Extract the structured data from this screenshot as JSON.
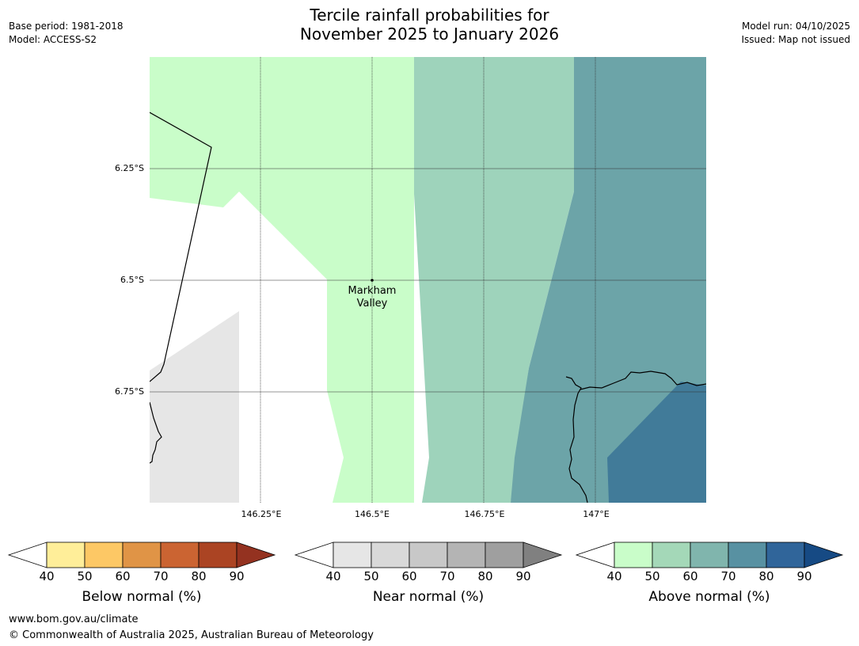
{
  "header": {
    "title_line1": "Tercile rainfall probabilities for",
    "title_line2": "November 2025 to January 2026",
    "base_period": "Base period: 1981-2018",
    "model": "Model: ACCESS-S2",
    "model_run": "Model run: 04/10/2025",
    "issued": "Issued: Map not issued"
  },
  "map": {
    "lat_labels": [
      "6.25°S",
      "6.5°S",
      "6.75°S"
    ],
    "lon_labels": [
      "146.25°E",
      "146.5°E",
      "146.75°E",
      "147°E"
    ],
    "place": {
      "name_line1": "Markham",
      "name_line2": "Valley"
    },
    "colors": {
      "above_40_50": "#c9fdc9",
      "above_50_60": "#9ed3bb",
      "above_60_70": "#6ca4a8",
      "above_70_80": "#417b99",
      "near_40_50": "#e6e6e6",
      "no_data": "#ffffff"
    }
  },
  "colorbars": [
    {
      "title": "Below normal (%)",
      "ticks": [
        "40",
        "50",
        "60",
        "70",
        "80",
        "90"
      ],
      "colors": [
        "#ffee99",
        "#fdc865",
        "#e09446",
        "#cb6432",
        "#ab4423",
        "#943220"
      ]
    },
    {
      "title": "Near normal (%)",
      "ticks": [
        "40",
        "50",
        "60",
        "70",
        "80",
        "90"
      ],
      "colors": [
        "#e6e6e6",
        "#d9d9d9",
        "#c8c8c8",
        "#b4b4b4",
        "#9f9f9f",
        "#808080"
      ]
    },
    {
      "title": "Above normal (%)",
      "ticks": [
        "40",
        "50",
        "60",
        "70",
        "80",
        "90"
      ],
      "colors": [
        "#c9fdc9",
        "#a4d8b8",
        "#80b5ad",
        "#5891a2",
        "#30659a",
        "#164a84"
      ]
    }
  ],
  "footer": {
    "url": "www.bom.gov.au/climate",
    "copyright": "© Commonwealth of Australia 2025, Australian Bureau of Meteorology"
  }
}
